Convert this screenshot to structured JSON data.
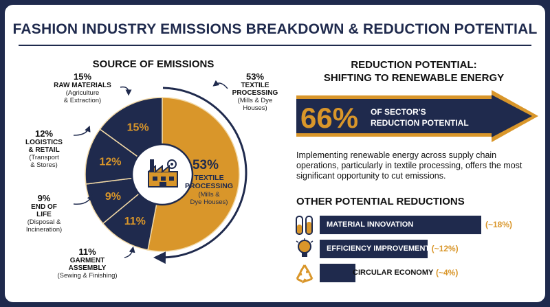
{
  "title": "FASHION INDUSTRY EMISSIONS BREAKDOWN & REDUCTION POTENTIAL",
  "left_section": {
    "title": "SOURCE OF EMISSIONS"
  },
  "right_section": {
    "title_line1": "REDUCTION POTENTIAL:",
    "title_line2": "SHIFTING TO RENEWABLE ENERGY",
    "big_value": "66%",
    "big_label_line1": "OF SECTOR'S",
    "big_label_line2": "REDUCTION POTENTIAL",
    "description": "Implementing renewable energy across supply chain operations, particularly in textile processing, offers the most significant opportunity to cut emissions.",
    "other_title": "OTHER POTENTIAL REDUCTIONS"
  },
  "labels": {
    "raw": {
      "pct": "15%",
      "name": "RAW MATERIALS",
      "sub1": "(Agriculture",
      "sub2": "& Extraction)"
    },
    "logistics": {
      "pct": "12%",
      "name1": "LOGISTICS",
      "name2": "& RETAIL",
      "sub1": "(Transport",
      "sub2": "& Stores)"
    },
    "eol": {
      "pct": "9%",
      "name1": "END OF",
      "name2": "LIFE",
      "sub1": "(Disposal &",
      "sub2": "Incineration)"
    },
    "garment": {
      "pct": "11%",
      "name1": "GARMENT",
      "name2": "ASSEMBLY",
      "sub1": "(Sewing & Finishing)"
    },
    "textile_outer": {
      "pct": "53%",
      "name1": "TEXTILE",
      "name2": "PROCESSING",
      "sub1": "(Mills & Dye",
      "sub2": "Houses)"
    },
    "textile_inner": {
      "pct": "53%",
      "name1": "TEXTILE",
      "name2": "PROCESSING",
      "sub1": "(Mills &",
      "sub2": "Dye Houses)"
    }
  },
  "colors": {
    "navy": "#1f2a4d",
    "gold": "#d9962a",
    "slice_line": "#f2d9a6"
  },
  "icons": [
    "factory-icon",
    "test-tubes-icon",
    "lightbulb-icon",
    "recycle-icon",
    "arrow-curve-icon"
  ],
  "chart_data": [
    {
      "type": "pie",
      "title": "SOURCE OF EMISSIONS",
      "slices": [
        {
          "label": "TEXTILE PROCESSING",
          "value": 53,
          "display": "53%"
        },
        {
          "label": "GARMENT ASSEMBLY",
          "value": 11,
          "display": "11%"
        },
        {
          "label": "END OF LIFE",
          "value": 9,
          "display": "9%"
        },
        {
          "label": "LOGISTICS & RETAIL",
          "value": 12,
          "display": "12%"
        },
        {
          "label": "RAW MATERIALS",
          "value": 15,
          "display": "15%"
        }
      ]
    },
    {
      "type": "bar",
      "title": "OTHER POTENTIAL REDUCTIONS",
      "categories": [
        "MATERIAL INNOVATION",
        "EFFICIENCY IMPROVEMENTS",
        "CIRCULAR ECONOMY"
      ],
      "values": [
        18,
        12,
        4
      ],
      "value_labels": [
        "(~18%)",
        "(~12%)",
        "(~4%)"
      ]
    }
  ]
}
